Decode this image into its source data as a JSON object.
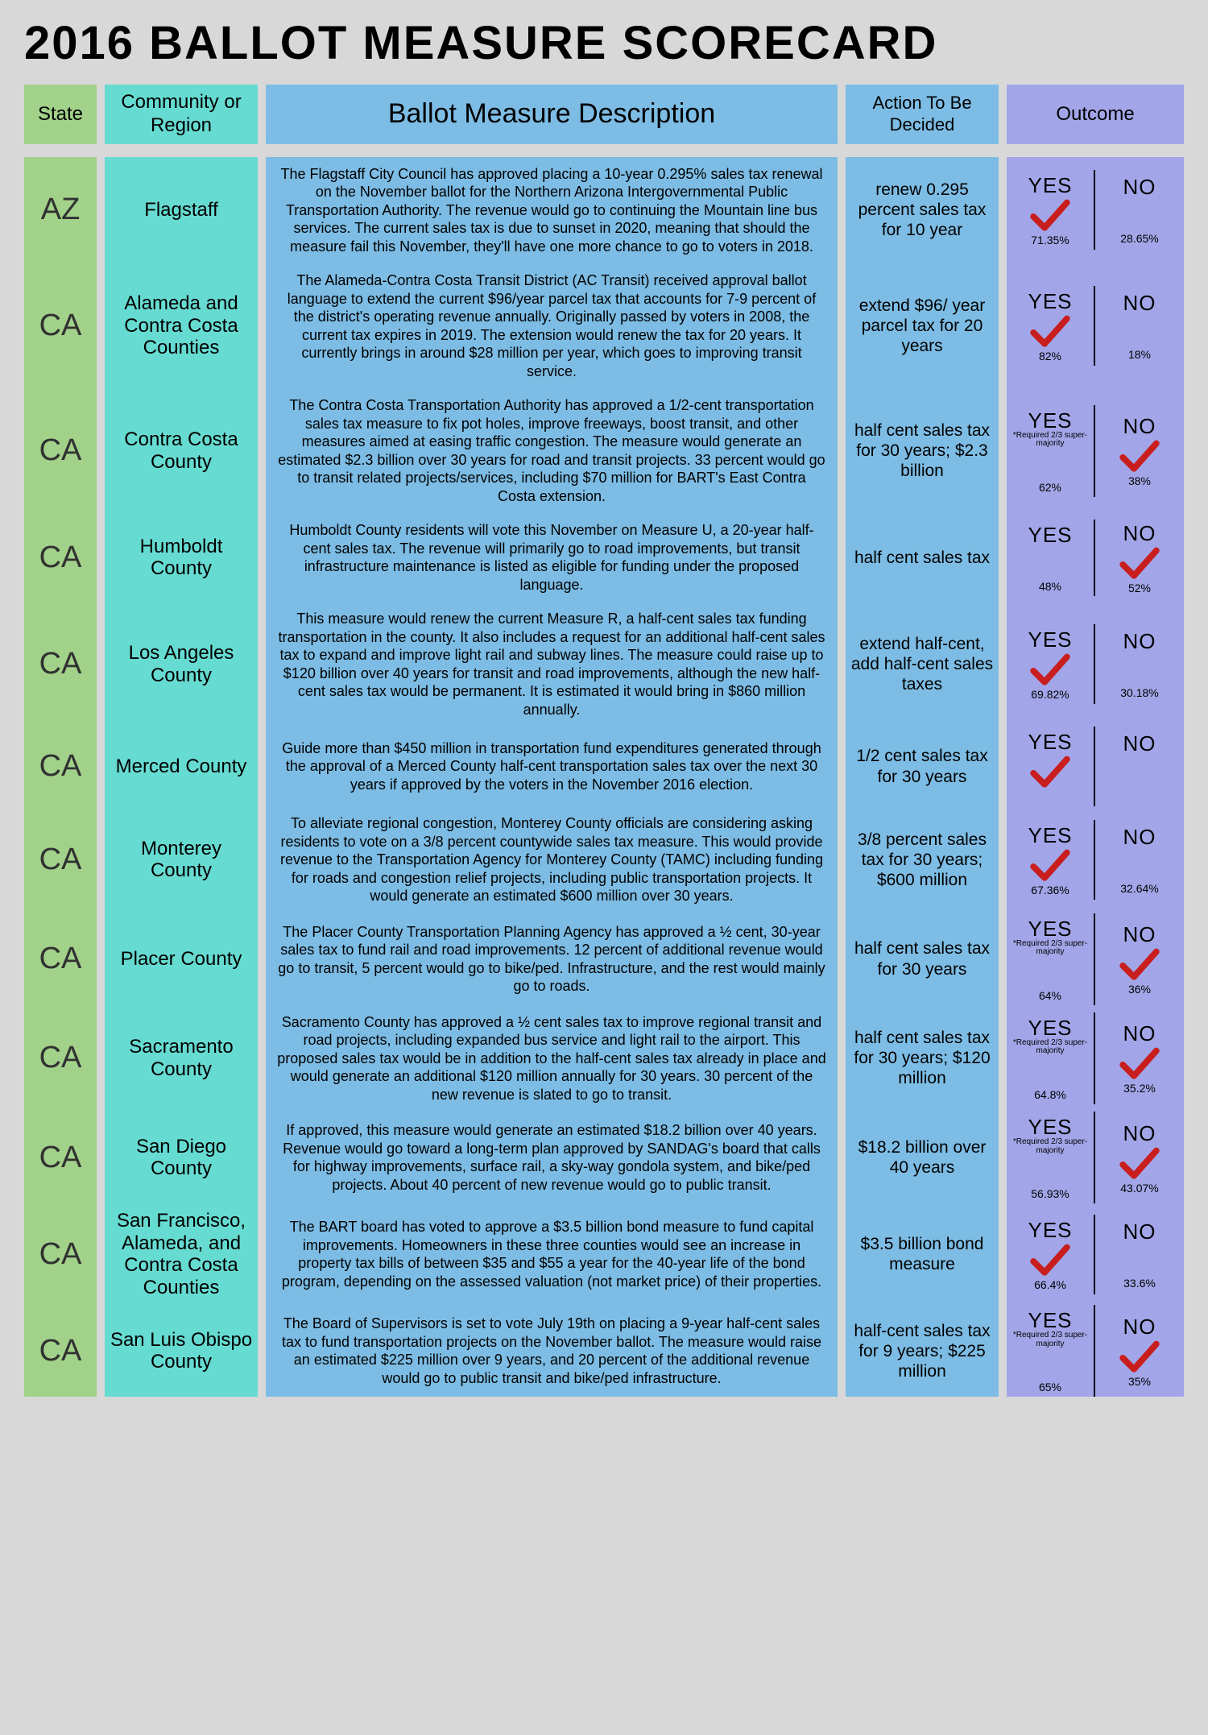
{
  "title": "2016 BALLOT MEASURE SCORECARD",
  "colors": {
    "page_bg": "#d8d8d8",
    "green": "#a2d18a",
    "cyan": "#66dbd1",
    "blue": "#7dbce4",
    "lavender": "#a2a6e8",
    "check": "#c81e1e"
  },
  "headers": {
    "state": "State",
    "region": "Community or Region",
    "description": "Ballot Measure Description",
    "action": "Action To Be Decided",
    "outcome": "Outcome"
  },
  "outcome_labels": {
    "yes": "YES",
    "no": "NO"
  },
  "supermajority_note": "*Required 2/3 super-majority",
  "rows": [
    {
      "state": "AZ",
      "region": "Flagstaff",
      "description": "The Flagstaff City Council has approved placing a 10-year 0.295% sales tax renewal on the November ballot for the Northern Arizona Intergovernmental Public Transportation Authority. The revenue would go to continuing the Mountain line bus services.  The current sales tax is due to sunset in 2020, meaning that should the measure fail this November, they'll have one more chance to go to voters in 2018.",
      "action": "renew 0.295 percent sales tax for 10 year",
      "yes_pct": "71.35%",
      "no_pct": "28.65%",
      "winner": "yes",
      "note": false
    },
    {
      "state": "CA",
      "region": "Alameda and Contra Costa Counties",
      "description": "The Alameda-Contra Costa Transit District (AC Transit) received approval ballot language to extend the current $96/year parcel tax that accounts for 7-9 percent of the district's operating revenue annually. Originally passed by voters in 2008, the current tax expires in 2019. The extension would renew the tax for 20 years. It currently brings in around $28 million per year, which goes to improving transit service.",
      "action": "extend $96/ year parcel tax for 20 years",
      "yes_pct": "82%",
      "no_pct": "18%",
      "winner": "yes",
      "note": false
    },
    {
      "state": "CA",
      "region": "Contra Costa County",
      "description": "The Contra Costa Transportation Authority has approved a 1/2-cent transportation sales tax measure to fix pot holes, improve freeways, boost transit, and other measures aimed at easing traffic congestion. The measure would generate an estimated $2.3 billion over 30 years for road and transit projects. 33 percent would go to transit related projects/services, including $70 million for BART's East Contra Costa extension.",
      "action": "half cent sales tax for 30 years; $2.3 billion",
      "yes_pct": "62%",
      "no_pct": "38%",
      "winner": "no",
      "note": true
    },
    {
      "state": "CA",
      "region": "Humboldt County",
      "description": "Humboldt County residents will vote this November on Measure U, a 20-year half-cent sales tax. The revenue will primarily go to road improvements, but transit infrastructure maintenance is listed as eligible for funding under the proposed language.",
      "action": "half cent sales tax",
      "yes_pct": "48%",
      "no_pct": "52%",
      "winner": "no",
      "note": false
    },
    {
      "state": "CA",
      "region": "Los Angeles County",
      "description": "This measure would renew the current Measure R, a half-cent sales tax funding transportation in the county.  It also includes a request for an additional half-cent sales tax to expand and improve light rail and subway lines. The measure could raise up to $120 billion over 40 years for transit and road improvements, although the new half-cent sales tax would be permanent. It is estimated it would bring in $860 million annually.",
      "action": "extend half-cent, add half-cent sales taxes",
      "yes_pct": "69.82%",
      "no_pct": "30.18%",
      "winner": "yes",
      "note": false
    },
    {
      "state": "CA",
      "region": "Merced County",
      "description": "Guide more than $450 million in transportation fund expenditures generated through the approval of a Merced County half-cent transportation sales tax over the next 30 years if approved by the voters in the November 2016 election.",
      "action": "1/2 cent sales tax for 30 years",
      "yes_pct": "",
      "no_pct": "",
      "winner": "yes",
      "note": false
    },
    {
      "state": "CA",
      "region": "Monterey County",
      "description": "To alleviate regional congestion, Monterey County officials are considering asking residents to vote on a 3/8 percent countywide sales tax measure. This would provide revenue to the Transportation Agency for Monterey County (TAMC) including funding for roads and congestion relief projects, including public transportation projects. It would generate an estimated $600 million over 30 years.",
      "action": "3/8 percent sales tax for 30 years; $600 million",
      "yes_pct": "67.36%",
      "no_pct": "32.64%",
      "winner": "yes",
      "note": false
    },
    {
      "state": "CA",
      "region": "Placer County",
      "description": "The Placer County Transportation Planning Agency has approved a ½ cent, 30-year sales tax to fund rail and road improvements. 12 percent of additional revenue would go to transit, 5 percent would go to bike/ped. Infrastructure, and the rest would mainly go to roads.",
      "action": "half cent sales tax for 30 years",
      "yes_pct": "64%",
      "no_pct": "36%",
      "winner": "no",
      "note": true
    },
    {
      "state": "CA",
      "region": "Sacramento County",
      "description": "Sacramento County has approved a ½ cent sales tax to improve regional transit and road projects, including expanded bus service and light rail to the airport. This proposed sales tax would be in addition to the half-cent sales tax already in place and would generate an additional $120 million annually for 30 years. 30 percent of the new revenue is slated to go to transit.",
      "action": "half cent sales tax for 30 years; $120 million",
      "yes_pct": "64.8%",
      "no_pct": "35.2%",
      "winner": "no",
      "note": true
    },
    {
      "state": "CA",
      "region": "San Diego County",
      "description": "If approved, this measure would generate an estimated $18.2 billion over 40 years. Revenue would go toward a long-term plan approved by SANDAG's board that calls for highway improvements, surface rail, a sky-way gondola system, and bike/ped projects. About 40 percent of new revenue would go to public transit.",
      "action": "$18.2 billion over 40 years",
      "yes_pct": "56.93%",
      "no_pct": "43.07%",
      "winner": "no",
      "note": true
    },
    {
      "state": "CA",
      "region": "San Francisco, Alameda, and Contra Costa Counties",
      "description": "The BART board has voted to approve a $3.5 billion bond measure to fund capital improvements. Homeowners in these three counties would see an increase in property tax bills of between $35 and $55 a year for the 40-year life of the bond program, depending on the assessed valuation (not market price) of their properties.",
      "action": "$3.5 billion bond measure",
      "yes_pct": "66.4%",
      "no_pct": "33.6%",
      "winner": "yes",
      "note": false
    },
    {
      "state": "CA",
      "region": "San Luis Obispo County",
      "description": "The Board of Supervisors is set to vote July 19th on placing a 9-year half-cent sales tax to fund transportation projects on the November ballot. The measure would raise an estimated $225 million over 9 years, and 20 percent of the additional revenue would go to public transit and bike/ped infrastructure.",
      "action": "half-cent sales tax for 9 years; $225 million",
      "yes_pct": "65%",
      "no_pct": "35%",
      "winner": "no",
      "note": true
    }
  ]
}
